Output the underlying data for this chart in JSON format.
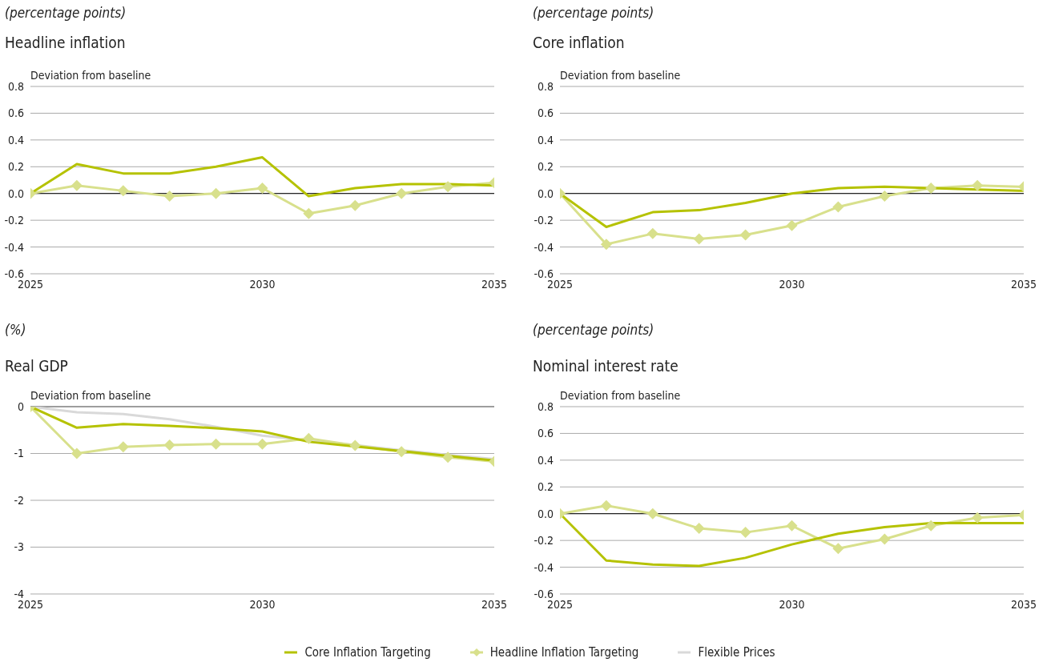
{
  "chart_data": [
    {
      "type": "line",
      "subtitle": "(percentage points)",
      "title": "Headline inflation",
      "ylabel": "Deviation from baseline",
      "x": [
        2025,
        2026,
        2027,
        2028,
        2029,
        2030,
        2031,
        2032,
        2033,
        2034,
        2035
      ],
      "xlim": [
        2025,
        2035
      ],
      "xticks": [
        2025,
        2030,
        2035
      ],
      "ylim": [
        -0.6,
        0.8
      ],
      "yticks": [
        {
          "value": -0.6,
          "label": "-0.6"
        },
        {
          "value": -0.4,
          "label": "-0.4"
        },
        {
          "value": -0.2,
          "label": "-0.2"
        },
        {
          "value": 0,
          "label": "0.0"
        },
        {
          "value": 0.2,
          "label": "0.2"
        },
        {
          "value": 0.4,
          "label": "0.4"
        },
        {
          "value": 0.6,
          "label": "0.6"
        },
        {
          "value": 0.8,
          "label": "0.8"
        }
      ],
      "grid": "y",
      "ref_lines": [
        {
          "axis": "y",
          "value": 0,
          "color": "#000000"
        }
      ],
      "series": [
        {
          "color": "#b5c200",
          "marker": "none",
          "values": [
            0,
            0.22,
            0.15,
            0.15,
            0.2,
            0.27,
            -0.02,
            0.04,
            0.07,
            0.07,
            0.06
          ]
        },
        {
          "color": "#d8e08c",
          "marker": "diamond",
          "values": [
            0,
            0.06,
            0.02,
            -0.02,
            0,
            0.04,
            -0.15,
            -0.09,
            0,
            0.05,
            0.08
          ]
        }
      ]
    },
    {
      "type": "line",
      "subtitle": "(percentage points)",
      "title": "Core inflation",
      "ylabel": "Deviation from baseline",
      "x": [
        2025,
        2026,
        2027,
        2028,
        2029,
        2030,
        2031,
        2032,
        2033,
        2034,
        2035
      ],
      "xlim": [
        2025,
        2035
      ],
      "xticks": [
        2025,
        2030,
        2035
      ],
      "ylim": [
        -0.6,
        0.8
      ],
      "yticks": [
        {
          "value": -0.6,
          "label": "-0.6"
        },
        {
          "value": -0.4,
          "label": "-0.4"
        },
        {
          "value": -0.2,
          "label": "-0.2"
        },
        {
          "value": 0,
          "label": "0.0"
        },
        {
          "value": 0.2,
          "label": "0.2"
        },
        {
          "value": 0.4,
          "label": "0.4"
        },
        {
          "value": 0.6,
          "label": "0.6"
        },
        {
          "value": 0.8,
          "label": "0.8"
        }
      ],
      "grid": "y",
      "ref_lines": [
        {
          "axis": "y",
          "value": 0,
          "color": "#000000"
        }
      ],
      "series": [
        {
          "color": "#b5c200",
          "marker": "none",
          "values": [
            0,
            -0.25,
            -0.14,
            -0.125,
            -0.07,
            0,
            0.04,
            0.05,
            0.04,
            0.03,
            0.02
          ]
        },
        {
          "color": "#d8e08c",
          "marker": "diamond",
          "values": [
            0,
            -0.38,
            -0.3,
            -0.34,
            -0.31,
            -0.24,
            -0.1,
            -0.02,
            0.04,
            0.06,
            0.05
          ]
        }
      ]
    },
    {
      "type": "line",
      "subtitle": "(%)",
      "title": "Real GDP",
      "ylabel": "Deviation from baseline",
      "x": [
        2025,
        2026,
        2027,
        2028,
        2029,
        2030,
        2031,
        2032,
        2033,
        2034,
        2035
      ],
      "xlim": [
        2025,
        2035
      ],
      "xticks": [
        2025,
        2030,
        2035
      ],
      "ylim": [
        -4,
        0
      ],
      "yticks": [
        -4,
        -3,
        -2,
        -1,
        0
      ],
      "grid": "y",
      "legend": "bottom",
      "ref_lines": [
        {
          "axis": "y",
          "value": 0,
          "color": "#666666"
        }
      ],
      "series": [
        {
          "name": "Core Inflation Targeting",
          "color": "#b5c200",
          "marker": "none",
          "values": [
            0,
            -0.45,
            -0.37,
            -0.41,
            -0.46,
            -0.53,
            -0.75,
            -0.85,
            -0.95,
            -1.05,
            -1.15
          ]
        },
        {
          "name": "Headline Inflation Targeting",
          "color": "#d8e08c",
          "marker": "diamond",
          "values": [
            0,
            -1.0,
            -0.86,
            -0.82,
            -0.8,
            -0.8,
            -0.68,
            -0.83,
            -0.96,
            -1.08,
            -1.17
          ]
        },
        {
          "name": "Flexible Prices",
          "color": "#d9d9d9",
          "marker": "none",
          "values": [
            0,
            -0.12,
            -0.16,
            -0.27,
            -0.43,
            -0.62,
            -0.72,
            -0.82,
            -0.93,
            -1.03,
            -1.12
          ]
        }
      ]
    },
    {
      "type": "line",
      "subtitle": "(percentage points)",
      "title": "Nominal interest rate",
      "ylabel": "Deviation from baseline",
      "x": [
        2025,
        2026,
        2027,
        2028,
        2029,
        2030,
        2031,
        2032,
        2033,
        2034,
        2035
      ],
      "xlim": [
        2025,
        2035
      ],
      "xticks": [
        2025,
        2030,
        2035
      ],
      "ylim": [
        -0.6,
        0.8
      ],
      "yticks": [
        {
          "value": -0.6,
          "label": "-0.6"
        },
        {
          "value": -0.4,
          "label": "-0.4"
        },
        {
          "value": -0.2,
          "label": "-0.2"
        },
        {
          "value": 0,
          "label": "0.0"
        },
        {
          "value": 0.2,
          "label": "0.2"
        },
        {
          "value": 0.4,
          "label": "0.4"
        },
        {
          "value": 0.6,
          "label": "0.6"
        },
        {
          "value": 0.8,
          "label": "0.8"
        }
      ],
      "grid": "y",
      "ref_lines": [
        {
          "axis": "y",
          "value": 0,
          "color": "#000000"
        }
      ],
      "series": [
        {
          "color": "#b5c200",
          "marker": "none",
          "values": [
            0,
            -0.35,
            -0.38,
            -0.39,
            -0.33,
            -0.23,
            -0.15,
            -0.1,
            -0.07,
            -0.07,
            -0.07
          ]
        },
        {
          "color": "#d8e08c",
          "marker": "diamond",
          "values": [
            0,
            0.06,
            0,
            -0.11,
            -0.14,
            -0.09,
            -0.26,
            -0.19,
            -0.09,
            -0.03,
            -0.01
          ]
        }
      ]
    }
  ]
}
